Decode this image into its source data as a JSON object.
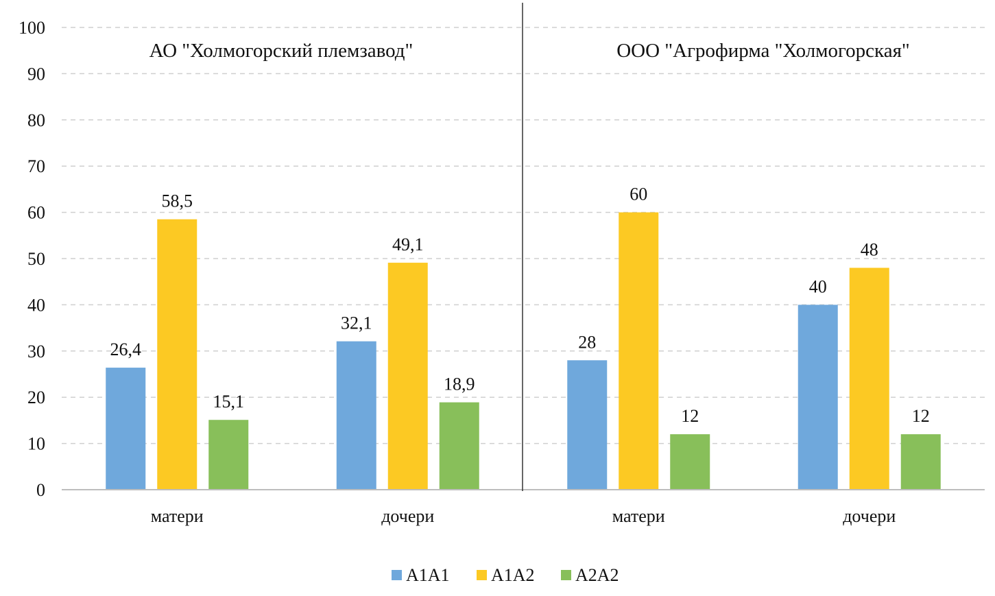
{
  "chart_data": {
    "type": "bar",
    "groups": [
      {
        "title": "АО \"Холмогорский племзавод\"",
        "categories": [
          "матери",
          "дочери"
        ],
        "series": [
          {
            "name": "A1A1",
            "values": [
              26.4,
              32.1
            ],
            "labels": [
              "26,4",
              "32,1"
            ]
          },
          {
            "name": "A1A2",
            "values": [
              58.5,
              49.1
            ],
            "labels": [
              "58,5",
              "49,1"
            ]
          },
          {
            "name": "A2A2",
            "values": [
              15.1,
              18.9
            ],
            "labels": [
              "15,1",
              "18,9"
            ]
          }
        ]
      },
      {
        "title": "ООО \"Агрофирма \"Холмогорская\"",
        "categories": [
          "матери",
          "дочери"
        ],
        "series": [
          {
            "name": "A1A1",
            "values": [
              28,
              40
            ],
            "labels": [
              "28",
              "40"
            ]
          },
          {
            "name": "A1A2",
            "values": [
              60,
              48
            ],
            "labels": [
              "60",
              "48"
            ]
          },
          {
            "name": "A2A2",
            "values": [
              12,
              12
            ],
            "labels": [
              "12",
              "12"
            ]
          }
        ]
      }
    ],
    "series_colors": {
      "A1A1": "#6fa8dc",
      "A1A2": "#fcc923",
      "A2A2": "#88bf5a"
    },
    "legend": [
      "A1A1",
      "A1A2",
      "A2A2"
    ],
    "legend_position": "bottom",
    "yticks": [
      "0",
      "10",
      "20",
      "30",
      "40",
      "50",
      "60",
      "70",
      "80",
      "90",
      "100"
    ],
    "ylim": [
      0,
      100
    ],
    "grid": true,
    "grid_style": "dashed"
  }
}
